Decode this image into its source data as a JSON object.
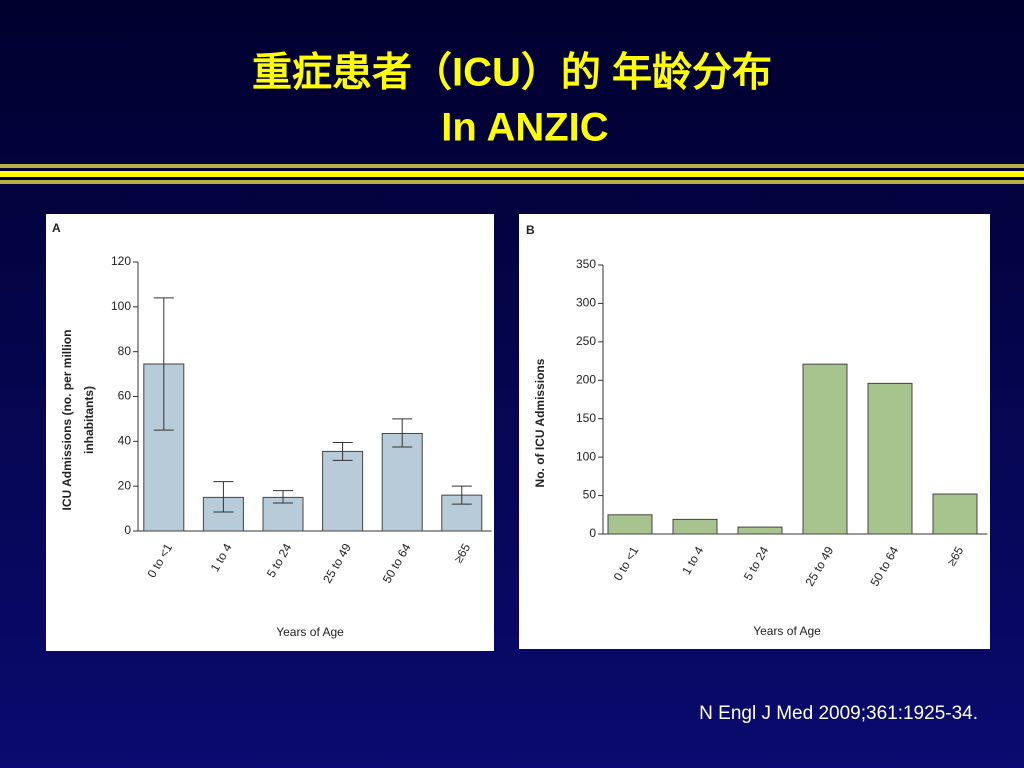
{
  "title": "重症患者（ICU）的 年龄分布",
  "subtitle": "In ANZIC",
  "citation": "N Engl J Med 2009;361:1925-34.",
  "chart_data": [
    {
      "type": "bar",
      "panel": "A",
      "categories": [
        "0 to <1",
        "1 to 4",
        "5 to 24",
        "25 to 49",
        "50 to 64",
        "≥65"
      ],
      "values": [
        74.5,
        15,
        15,
        35.5,
        43.5,
        16
      ],
      "lower": [
        45,
        8.5,
        12.5,
        31.5,
        37.5,
        12
      ],
      "upper": [
        104,
        22,
        18,
        39.5,
        50,
        20
      ],
      "color": "#b8cbd8",
      "ylim": [
        0,
        120
      ],
      "yticks": [
        0,
        20,
        40,
        60,
        80,
        100,
        120
      ],
      "ylabel": [
        "ICU Admissions (no. per million",
        "inhabitants)"
      ],
      "xlabel": "Years of Age"
    },
    {
      "type": "bar",
      "panel": "B",
      "categories": [
        "0 to <1",
        "1 to 4",
        "5 to 24",
        "25 to 49",
        "50 to 64",
        "≥65"
      ],
      "values": [
        25,
        19,
        9,
        221,
        196,
        52
      ],
      "color": "#a8c48e",
      "ylim": [
        0,
        350
      ],
      "yticks": [
        0,
        50,
        100,
        150,
        200,
        250,
        300,
        350
      ],
      "ylabel": [
        "No. of ICU Admissions"
      ],
      "xlabel": "Years of Age"
    }
  ]
}
